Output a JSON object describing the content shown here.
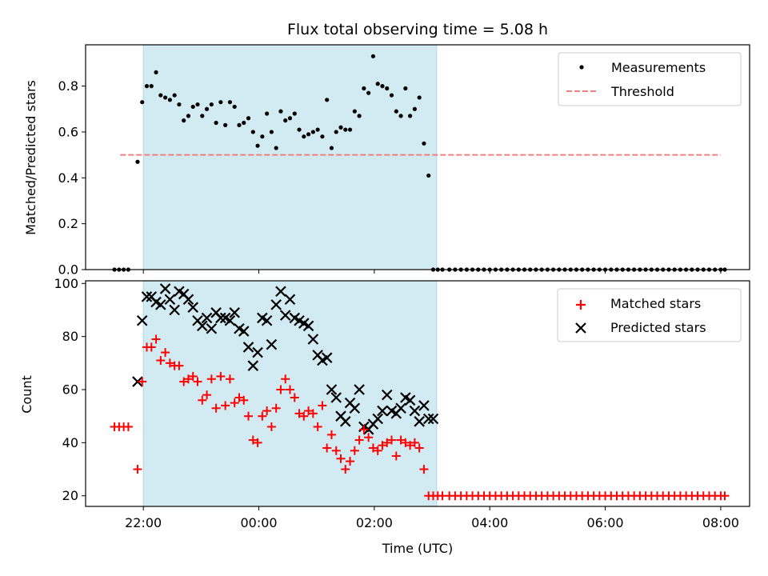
{
  "chart_data": [
    {
      "panel": "top",
      "type": "scatter",
      "title": "Flux total observing time = 5.08 h",
      "xlabel": "",
      "ylabel": "Matched/Predicted stars",
      "ylim": [
        0,
        0.98
      ],
      "yticks": [
        "0.0",
        "0.2",
        "0.4",
        "0.6",
        "0.8"
      ],
      "ytick_values": [
        0,
        0.2,
        0.4,
        0.6,
        0.8
      ],
      "xlim": [
        -2.0,
        9.5
      ],
      "grid": false,
      "legend": "top-right",
      "shaded_span": {
        "x": [
          -1.0,
          4.08
        ],
        "color": "#add8e6"
      },
      "series": [
        {
          "name": "Measurements",
          "marker": "dot",
          "color": "#000000",
          "x": [
            -1.5,
            -1.42,
            -1.34,
            -1.26,
            -1.1,
            -1.02,
            -0.94,
            -0.86,
            -0.78,
            -0.7,
            -0.62,
            -0.54,
            -0.46,
            -0.38,
            -0.3,
            -0.22,
            -0.14,
            -0.06,
            0.02,
            0.1,
            0.18,
            0.26,
            0.34,
            0.42,
            0.5,
            0.58,
            0.66,
            0.74,
            0.82,
            0.9,
            0.98,
            1.06,
            1.14,
            1.22,
            1.3,
            1.38,
            1.46,
            1.54,
            1.62,
            1.7,
            1.78,
            1.86,
            1.94,
            2.02,
            2.1,
            2.18,
            2.26,
            2.34,
            2.42,
            2.5,
            2.58,
            2.66,
            2.74,
            2.82,
            2.9,
            2.98,
            3.06,
            3.14,
            3.22,
            3.3,
            3.38,
            3.46,
            3.54,
            3.62,
            3.7,
            3.78,
            3.86,
            3.94,
            4.02,
            4.1,
            4.18,
            4.3,
            4.4,
            4.5,
            4.6,
            4.7,
            4.8,
            4.9,
            5.0,
            5.1,
            5.2,
            5.3,
            5.4,
            5.5,
            5.6,
            5.7,
            5.8,
            5.9,
            6.0,
            6.1,
            6.2,
            6.3,
            6.4,
            6.5,
            6.6,
            6.7,
            6.8,
            6.9,
            7.0,
            7.1,
            7.2,
            7.3,
            7.4,
            7.5,
            7.6,
            7.7,
            7.8,
            7.9,
            8.0,
            8.1,
            8.2,
            8.3,
            8.4,
            8.5,
            8.6,
            8.7,
            8.8,
            8.9,
            9.0,
            9.07
          ],
          "y": [
            0,
            0,
            0,
            0,
            0.47,
            0.73,
            0.8,
            0.8,
            0.86,
            0.76,
            0.75,
            0.74,
            0.76,
            0.72,
            0.65,
            0.67,
            0.71,
            0.72,
            0.67,
            0.7,
            0.72,
            0.64,
            0.73,
            0.63,
            0.73,
            0.71,
            0.63,
            0.64,
            0.66,
            0.6,
            0.54,
            0.58,
            0.68,
            0.6,
            0.53,
            0.69,
            0.65,
            0.66,
            0.68,
            0.61,
            0.58,
            0.59,
            0.6,
            0.61,
            0.58,
            0.74,
            0.53,
            0.6,
            0.62,
            0.61,
            0.61,
            0.69,
            0.67,
            0.79,
            0.77,
            0.93,
            0.81,
            0.8,
            0.79,
            0.76,
            0.69,
            0.67,
            0.79,
            0.67,
            0.7,
            0.75,
            0.55,
            0.41,
            0,
            0,
            0,
            0,
            0,
            0,
            0,
            0,
            0,
            0,
            0,
            0,
            0,
            0,
            0,
            0,
            0,
            0,
            0,
            0,
            0,
            0,
            0,
            0,
            0,
            0,
            0,
            0,
            0,
            0,
            0,
            0,
            0,
            0,
            0,
            0,
            0,
            0,
            0,
            0,
            0,
            0,
            0,
            0,
            0,
            0,
            0,
            0,
            0,
            0,
            0,
            0
          ]
        },
        {
          "name": "Threshold",
          "marker": "dashed-line",
          "color": "#f08080",
          "x": [
            -1.4,
            9.0
          ],
          "y": [
            0.5,
            0.5
          ]
        }
      ]
    },
    {
      "panel": "bottom",
      "type": "scatter",
      "title": "",
      "xlabel": "Time (UTC)",
      "ylabel": "Count",
      "ylim": [
        16,
        101
      ],
      "yticks": [
        "20",
        "40",
        "60",
        "80",
        "100"
      ],
      "ytick_values": [
        20,
        40,
        60,
        80,
        100
      ],
      "xlim": [
        -2.0,
        9.5
      ],
      "xticks": [
        "22:00",
        "00:00",
        "02:00",
        "04:00",
        "06:00",
        "08:00"
      ],
      "xtick_values": [
        -1,
        1,
        3,
        5,
        7,
        9
      ],
      "grid": false,
      "legend": "top-right",
      "shaded_span": {
        "x": [
          -1.0,
          4.08
        ],
        "color": "#add8e6"
      },
      "series": [
        {
          "name": "Matched stars",
          "marker": "plus",
          "color": "#ff0000",
          "x": [
            -1.5,
            -1.42,
            -1.34,
            -1.26,
            -1.1,
            -1.02,
            -0.94,
            -0.86,
            -0.78,
            -0.7,
            -0.62,
            -0.54,
            -0.46,
            -0.38,
            -0.3,
            -0.22,
            -0.14,
            -0.06,
            0.02,
            0.1,
            0.18,
            0.26,
            0.34,
            0.42,
            0.5,
            0.58,
            0.66,
            0.74,
            0.82,
            0.9,
            0.98,
            1.06,
            1.14,
            1.22,
            1.3,
            1.38,
            1.46,
            1.54,
            1.62,
            1.7,
            1.78,
            1.86,
            1.94,
            2.02,
            2.1,
            2.18,
            2.26,
            2.34,
            2.42,
            2.5,
            2.58,
            2.66,
            2.74,
            2.82,
            2.9,
            2.98,
            3.06,
            3.14,
            3.22,
            3.3,
            3.38,
            3.46,
            3.54,
            3.62,
            3.7,
            3.78,
            3.86,
            3.94,
            4.02,
            4.1,
            4.18,
            4.3,
            4.4,
            4.5,
            4.6,
            4.7,
            4.8,
            4.9,
            5.0,
            5.1,
            5.2,
            5.3,
            5.4,
            5.5,
            5.6,
            5.7,
            5.8,
            5.9,
            6.0,
            6.1,
            6.2,
            6.3,
            6.4,
            6.5,
            6.6,
            6.7,
            6.8,
            6.9,
            7.0,
            7.1,
            7.2,
            7.3,
            7.4,
            7.5,
            7.6,
            7.7,
            7.8,
            7.9,
            8.0,
            8.1,
            8.2,
            8.3,
            8.4,
            8.5,
            8.6,
            8.7,
            8.8,
            8.9,
            9.0,
            9.07
          ],
          "y": [
            46,
            46,
            46,
            46,
            30,
            63,
            76,
            76,
            79,
            71,
            74,
            70,
            69,
            69,
            63,
            64,
            65,
            63,
            56,
            58,
            64,
            53,
            65,
            54,
            64,
            55,
            57,
            56,
            50,
            41,
            40,
            50,
            52,
            46,
            53,
            60,
            64,
            60,
            57,
            51,
            50,
            52,
            51,
            46,
            54,
            38,
            43,
            37,
            34,
            30,
            33,
            37,
            41,
            45,
            42,
            38,
            37,
            39,
            40,
            41,
            35,
            41,
            40,
            39,
            40,
            38,
            30,
            20,
            20,
            20,
            20,
            20,
            20,
            20,
            20,
            20,
            20,
            20,
            20,
            20,
            20,
            20,
            20,
            20,
            20,
            20,
            20,
            20,
            20,
            20,
            20,
            20,
            20,
            20,
            20,
            20,
            20,
            20,
            20,
            20,
            20,
            20,
            20,
            20,
            20,
            20,
            20,
            20,
            20,
            20,
            20,
            20,
            20,
            20,
            20,
            20,
            20,
            20,
            20,
            20
          ]
        },
        {
          "name": "Predicted stars",
          "marker": "x",
          "color": "#000000",
          "x": [
            -1.1,
            -1.02,
            -0.94,
            -0.86,
            -0.78,
            -0.7,
            -0.62,
            -0.54,
            -0.46,
            -0.38,
            -0.3,
            -0.22,
            -0.14,
            -0.06,
            0.02,
            0.1,
            0.18,
            0.26,
            0.34,
            0.42,
            0.5,
            0.58,
            0.66,
            0.74,
            0.82,
            0.9,
            0.98,
            1.06,
            1.14,
            1.22,
            1.3,
            1.38,
            1.46,
            1.54,
            1.62,
            1.7,
            1.78,
            1.86,
            1.94,
            2.02,
            2.1,
            2.18,
            2.26,
            2.34,
            2.42,
            2.5,
            2.58,
            2.66,
            2.74,
            2.82,
            2.9,
            2.98,
            3.06,
            3.14,
            3.22,
            3.3,
            3.38,
            3.46,
            3.54,
            3.62,
            3.7,
            3.78,
            3.86,
            3.94,
            4.02
          ],
          "y": [
            63,
            86,
            95,
            95,
            93,
            92,
            98,
            94,
            90,
            97,
            96,
            94,
            91,
            86,
            84,
            87,
            83,
            89,
            87,
            87,
            86,
            89,
            83,
            82,
            76,
            69,
            74,
            87,
            86,
            77,
            92,
            97,
            88,
            94,
            87,
            86,
            85,
            84,
            79,
            73,
            71,
            72,
            60,
            57,
            50,
            48,
            55,
            53,
            60,
            46,
            45,
            47,
            49,
            52,
            58,
            52,
            51,
            53,
            57,
            56,
            52,
            48,
            54,
            49,
            49
          ]
        }
      ]
    }
  ]
}
